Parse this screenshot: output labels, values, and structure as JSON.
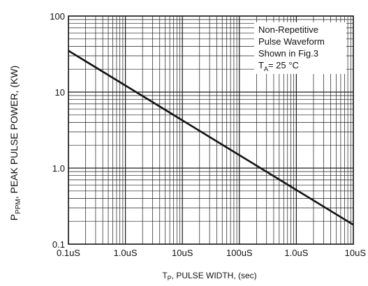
{
  "chart_data": {
    "type": "line",
    "x_scale": "log",
    "y_scale": "log",
    "xlim": [
      "0.1uS",
      "10uS"
    ],
    "ylim": [
      0.1,
      100
    ],
    "grid": true,
    "x_tick_labels": [
      "0.1uS",
      "1.0uS",
      "10uS",
      "100uS",
      "1.0uS",
      "10uS"
    ],
    "y_tick_labels": [
      "0.1",
      "1.0",
      "10",
      "100"
    ],
    "y_ticks": [
      0.1,
      1.0,
      10,
      100
    ],
    "xlabel": {
      "main": "T",
      "sub": "P",
      "rest": ", PULSE WIDTH, (sec)"
    },
    "ylabel": {
      "main": "P",
      "sub": "PPM",
      "rest": ", PEAK PULSE POWER, (KW)"
    },
    "annotation": {
      "line1": "Non-Repetitive",
      "line2": "Pulse Waveform",
      "line3": "Shown in Fig.3",
      "line4_main": "T",
      "line4_sub": "A",
      "line4_rest": "= 25 °C"
    },
    "series": [
      {
        "x_decades": [
          0,
          5
        ],
        "y": [
          35,
          0.18
        ]
      }
    ]
  }
}
